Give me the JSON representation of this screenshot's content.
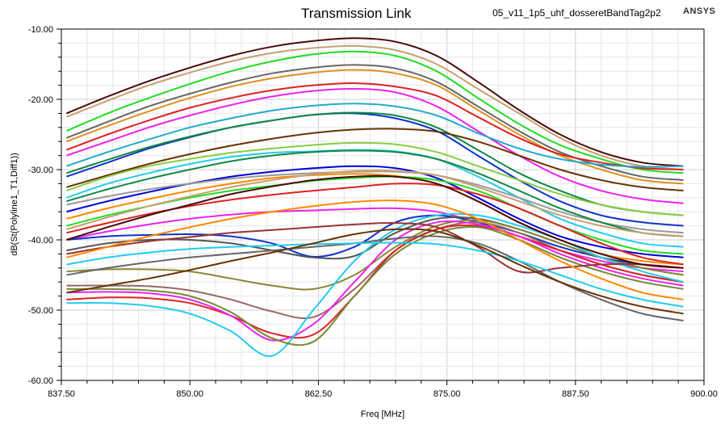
{
  "header": {
    "title": "Transmission Link",
    "project": "05_v11_1p5_uhf_dosseretBandTag2p2",
    "logo": "ANSYS"
  },
  "chart_data": {
    "type": "line",
    "title": "Transmission Link",
    "xlabel": "Freq [MHz]",
    "ylabel": "dB(St(Polyline1_T1,Diff1))",
    "xlim": [
      837.5,
      900.0
    ],
    "ylim": [
      -60.0,
      -10.0
    ],
    "grid": true,
    "xticks": [
      "837.50",
      "850.00",
      "862.50",
      "875.00",
      "887.50",
      "900.00"
    ],
    "yticks": [
      "-10.00",
      "-20.00",
      "-30.00",
      "-40.00",
      "-50.00",
      "-60.00"
    ],
    "x": [
      838,
      842,
      846,
      850,
      854,
      858,
      862,
      866,
      870,
      874,
      878,
      882,
      886,
      890,
      894,
      898
    ],
    "series": [
      {
        "color": "#4b0a0a",
        "values": [
          -22,
          -19.6,
          -17.4,
          -15.5,
          -13.8,
          -12.5,
          -11.7,
          -11.3,
          -11.8,
          -13.8,
          -17.5,
          -21.5,
          -25,
          -27.5,
          -29,
          -29.5
        ]
      },
      {
        "color": "#c8a070",
        "values": [
          -22.5,
          -20.2,
          -18,
          -16.2,
          -14.6,
          -13.4,
          -12.7,
          -12.4,
          -13,
          -15,
          -18.5,
          -22,
          -25.5,
          -28,
          -29.5,
          -30
        ]
      },
      {
        "color": "#22dd22",
        "values": [
          -24.5,
          -22,
          -19.8,
          -17.8,
          -16,
          -14.6,
          -13.6,
          -13.2,
          -13.8,
          -16,
          -19.8,
          -23.5,
          -26.5,
          -28.5,
          -30,
          -30.5
        ]
      },
      {
        "color": "#666666",
        "values": [
          -25.5,
          -23.2,
          -21,
          -19.2,
          -17.6,
          -16.3,
          -15.5,
          -15.1,
          -15.6,
          -17.5,
          -21,
          -24.5,
          -27.5,
          -29.5,
          -31,
          -31.5
        ]
      },
      {
        "color": "#e09020",
        "values": [
          -26,
          -23.8,
          -21.7,
          -19.8,
          -18.2,
          -17,
          -16.2,
          -15.8,
          -16.3,
          -18,
          -21.5,
          -25,
          -28,
          -30,
          -31.5,
          -32
        ]
      },
      {
        "color": "#dd2222",
        "values": [
          -27.2,
          -25,
          -23,
          -21.2,
          -19.8,
          -18.7,
          -18,
          -17.7,
          -18.2,
          -19.5,
          -22.5,
          -25.5,
          -27.8,
          -29,
          -29.8,
          -30
        ]
      },
      {
        "color": "#ee22ee",
        "values": [
          -28,
          -26,
          -24,
          -22.3,
          -20.8,
          -19.6,
          -18.8,
          -18.5,
          -19,
          -21,
          -24.5,
          -28,
          -31,
          -33,
          -34.2,
          -34.8
        ]
      },
      {
        "color": "#22aacc",
        "values": [
          -29.5,
          -27.5,
          -25.7,
          -24,
          -22.7,
          -21.6,
          -20.9,
          -20.6,
          -21,
          -22.3,
          -24.8,
          -27,
          -28.5,
          -29.3,
          -29.6,
          -29.5
        ]
      },
      {
        "color": "#1133cc",
        "values": [
          -31,
          -29,
          -27,
          -25.4,
          -24,
          -23,
          -22.2,
          -22,
          -22.7,
          -24.5,
          -28,
          -31.5,
          -34.5,
          -36.5,
          -37.5,
          -38
        ]
      },
      {
        "color": "#118844",
        "values": [
          -30.5,
          -28.6,
          -26.8,
          -25.3,
          -24,
          -23,
          -22.2,
          -21.9,
          -22.3,
          -24,
          -27.2,
          -30.5,
          -33,
          -35,
          -36,
          -36.5
        ]
      },
      {
        "color": "#663300",
        "values": [
          -32.5,
          -30.8,
          -29.2,
          -27.8,
          -26.6,
          -25.6,
          -24.8,
          -24.3,
          -24.2,
          -24.6,
          -26,
          -28,
          -30,
          -31.5,
          -32.5,
          -33
        ]
      },
      {
        "color": "#88cc44",
        "values": [
          -33,
          -31,
          -29.5,
          -28.5,
          -27.6,
          -27,
          -26.5,
          -26.2,
          -26.4,
          -27.5,
          -29.5,
          -31.5,
          -33.5,
          -35,
          -36,
          -36.5
        ]
      },
      {
        "color": "#22ccee",
        "values": [
          -34,
          -32,
          -30.5,
          -29.2,
          -28.2,
          -27.6,
          -27.4,
          -27.2,
          -27.4,
          -28.5,
          -31,
          -34,
          -37,
          -39,
          -40.5,
          -41
        ]
      },
      {
        "color": "#0000dd",
        "values": [
          -36,
          -34.5,
          -33.2,
          -32,
          -31,
          -30.3,
          -29.8,
          -29.5,
          -29.8,
          -31.2,
          -34,
          -37,
          -39.5,
          -41,
          -42,
          -42.5
        ]
      },
      {
        "color": "#999999",
        "values": [
          -35,
          -33.8,
          -32.8,
          -32,
          -31.3,
          -30.8,
          -30.5,
          -30.3,
          -30.3,
          -30.8,
          -32.2,
          -34,
          -36,
          -37.5,
          -38.5,
          -39
        ]
      },
      {
        "color": "#ff8800",
        "values": [
          -37,
          -35.5,
          -34.2,
          -33,
          -32,
          -31.2,
          -30.8,
          -30.6,
          -30.9,
          -32,
          -34.5,
          -37.5,
          -40,
          -42,
          -43,
          -43.5
        ]
      },
      {
        "color": "#22dd22",
        "values": [
          -38,
          -36.5,
          -35.2,
          -34,
          -33,
          -32.3,
          -31.6,
          -31.2,
          -31,
          -31.5,
          -33,
          -35.5,
          -38,
          -40,
          -41.5,
          -42
        ]
      },
      {
        "color": "#dd2222",
        "values": [
          -39,
          -37.6,
          -36.3,
          -35.2,
          -34.3,
          -33.6,
          -33,
          -32.5,
          -32,
          -32.2,
          -33.5,
          -35.5,
          -38,
          -40.5,
          -42.5,
          -43.5
        ]
      },
      {
        "color": "#ee22ee",
        "values": [
          -40,
          -38.8,
          -37.8,
          -37,
          -36.4,
          -36,
          -35.8,
          -35.6,
          -35.5,
          -36,
          -37.5,
          -39.5,
          -41.5,
          -43,
          -44,
          -44.5
        ]
      },
      {
        "color": "#1133cc",
        "values": [
          -40,
          -39.5,
          -39.3,
          -39.2,
          -39.5,
          -40.5,
          -42.4,
          -41,
          -37.5,
          -36.5,
          -37.5,
          -39,
          -41,
          -42.5,
          -43.5,
          -44
        ]
      },
      {
        "color": "#555555",
        "values": [
          -41.5,
          -40.5,
          -40,
          -40,
          -40.5,
          -41.5,
          -42.5,
          -42.3,
          -39,
          -37,
          -37,
          -38.5,
          -40.5,
          -42.5,
          -44,
          -45
        ]
      },
      {
        "color": "#888833",
        "values": [
          -44.5,
          -44.2,
          -44.2,
          -44.5,
          -45.5,
          -46.5,
          -47,
          -45,
          -41,
          -38,
          -37.2,
          -38.5,
          -40.5,
          -42.5,
          -44,
          -45
        ]
      },
      {
        "color": "#996666",
        "values": [
          -46.5,
          -46.5,
          -46.6,
          -47.2,
          -48.5,
          -50.2,
          -51,
          -47,
          -41.5,
          -38.5,
          -37.5,
          -39,
          -41.5,
          -43.5,
          -45,
          -46
        ]
      },
      {
        "color": "#dd2222",
        "values": [
          -48.5,
          -48.2,
          -48.3,
          -49,
          -50.8,
          -53.3,
          -53.5,
          -48,
          -41.5,
          -38.5,
          -38,
          -39.5,
          -41.5,
          -43.5,
          -45,
          -46
        ]
      },
      {
        "color": "#ee22ee",
        "values": [
          -47.5,
          -47.4,
          -47.6,
          -48.5,
          -50.8,
          -54.3,
          -52,
          -46,
          -40,
          -37.5,
          -37.8,
          -39.5,
          -42,
          -44,
          -45.5,
          -46.5
        ]
      },
      {
        "color": "#22ccee",
        "values": [
          -49,
          -49,
          -49.4,
          -50.5,
          -53,
          -56.5,
          -50,
          -43,
          -38.5,
          -36.5,
          -36.5,
          -38,
          -40,
          -42.5,
          -44.5,
          -46
        ]
      },
      {
        "color": "#778833",
        "values": [
          -47,
          -47,
          -47.2,
          -48,
          -50.3,
          -54,
          -54.5,
          -48,
          -42,
          -39,
          -38.2,
          -40,
          -42.5,
          -44.5,
          -46,
          -47
        ]
      },
      {
        "color": "#666666",
        "values": [
          -45,
          -44,
          -43.2,
          -42.5,
          -42,
          -41.5,
          -41,
          -40.5,
          -39.8,
          -39.5,
          -40.5,
          -43,
          -46,
          -48.5,
          -50.5,
          -51.5
        ]
      },
      {
        "color": "#993333",
        "values": [
          -42,
          -41,
          -40.2,
          -39.6,
          -39,
          -38.6,
          -38.2,
          -37.8,
          -37.6,
          -38.2,
          -41,
          -44.5,
          -44,
          -43.5,
          -43.5,
          -44
        ]
      },
      {
        "color": "#22ccee",
        "values": [
          -43.5,
          -42.5,
          -41.8,
          -41.3,
          -41,
          -40.8,
          -40.6,
          -40.5,
          -40.4,
          -40.6,
          -41.5,
          -43,
          -45,
          -47,
          -48.5,
          -49.5
        ]
      },
      {
        "color": "#118844",
        "values": [
          -34.5,
          -32.8,
          -31.3,
          -30,
          -28.8,
          -28,
          -27.5,
          -27.3,
          -27.5,
          -28.5,
          -30.5,
          -33,
          -35.5,
          -37.5,
          -39,
          -39.5
        ]
      },
      {
        "color": "#ff8800",
        "values": [
          -42.5,
          -41,
          -39.5,
          -38.2,
          -37,
          -36,
          -35.2,
          -34.6,
          -34.4,
          -35,
          -37,
          -40,
          -43,
          -45.5,
          -47.5,
          -48.5
        ]
      },
      {
        "color": "#663300",
        "values": [
          -47.5,
          -46.5,
          -45.5,
          -44.3,
          -43,
          -41.8,
          -40.5,
          -39.2,
          -38.5,
          -38.8,
          -40.8,
          -43.5,
          -46,
          -48,
          -49.5,
          -50.5
        ]
      },
      {
        "color": "#c8a070",
        "values": [
          -38.5,
          -36.8,
          -35.2,
          -33.8,
          -32.5,
          -31.5,
          -30.7,
          -30.2,
          -30.2,
          -30.8,
          -32.5,
          -34.5,
          -36.5,
          -38,
          -39,
          -39.5
        ]
      },
      {
        "color": "#4b0a0a",
        "values": [
          -40,
          -38.2,
          -36.5,
          -35,
          -33.5,
          -32.4,
          -31.5,
          -31,
          -31,
          -32,
          -34.5,
          -37.5,
          -40,
          -42,
          -43.5,
          -44
        ]
      }
    ]
  }
}
